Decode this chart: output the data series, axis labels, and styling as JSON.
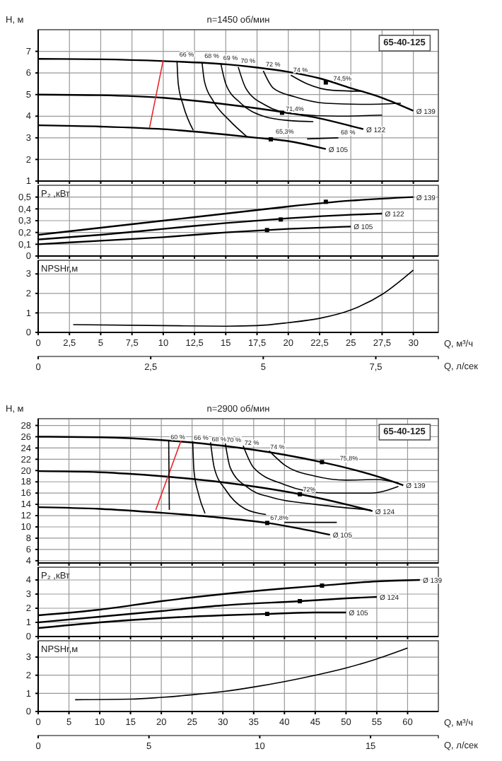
{
  "chart_data": [
    {
      "type": "line",
      "title": "n=1450 об/мин",
      "ylabel": "H, м",
      "xlim": [
        0,
        32
      ],
      "xticks": [
        0,
        2.5,
        5,
        7.5,
        10,
        12.5,
        15,
        17.5,
        20,
        22.5,
        25,
        27.5,
        30
      ],
      "ylim": [
        1,
        8
      ],
      "yticks": [
        1,
        2,
        3,
        4,
        5,
        6,
        7
      ],
      "grid": true,
      "tick_labels": "y",
      "series": [
        {
          "name": "Ø 139",
          "color": "#000000",
          "x": [
            0,
            5,
            10,
            15,
            17.5,
            20,
            22.5,
            25,
            27.5,
            30
          ],
          "values": [
            6.65,
            6.63,
            6.55,
            6.4,
            6.25,
            6.05,
            5.75,
            5.3,
            4.85,
            4.25
          ]
        },
        {
          "name": "Ø 122",
          "color": "#000000",
          "x": [
            0,
            5,
            10,
            15,
            20,
            22.5,
            25,
            26
          ],
          "values": [
            5.0,
            4.97,
            4.85,
            4.55,
            4.15,
            3.9,
            3.55,
            3.4
          ]
        },
        {
          "name": "Ø 105",
          "color": "#000000",
          "x": [
            0,
            5,
            10,
            15,
            17.5,
            20,
            22.5,
            23
          ],
          "values": [
            3.58,
            3.52,
            3.4,
            3.15,
            3.0,
            2.85,
            2.55,
            2.48
          ]
        },
        {
          "color": "#e8262b",
          "x": [
            10,
            8.9
          ],
          "values": [
            6.6,
            3.45
          ]
        },
        {
          "color": "#000000",
          "x": [
            11.1,
            11.2,
            11.6,
            12.4
          ],
          "values": [
            6.57,
            5.5,
            4.5,
            3.35
          ]
        },
        {
          "color": "#000000",
          "x": [
            13.1,
            13.3,
            14,
            15.3,
            16.7
          ],
          "values": [
            6.5,
            5.6,
            4.7,
            3.8,
            3.05
          ]
        },
        {
          "color": "#000000",
          "x": [
            14.6,
            15,
            16.2,
            18,
            20,
            22
          ],
          "values": [
            6.45,
            5.5,
            4.6,
            4.0,
            3.8,
            3.75
          ]
        },
        {
          "color": "#000000",
          "x": [
            16,
            16.6,
            18.2,
            20.5,
            24,
            27.5
          ],
          "values": [
            6.27,
            5.3,
            4.5,
            4.1,
            4.0,
            4.05
          ]
        },
        {
          "color": "#000000",
          "x": [
            18,
            18.8,
            20.5,
            23,
            26,
            29
          ],
          "values": [
            6.1,
            5.3,
            4.9,
            4.6,
            4.55,
            4.6
          ]
        },
        {
          "color": "#000000",
          "x": [
            20.2,
            21.5,
            23.5,
            26
          ],
          "values": [
            5.9,
            5.5,
            5.2,
            5.15
          ]
        },
        {
          "color": "#000000",
          "x": [
            21.5,
            24
          ],
          "values": [
            2.95,
            3.0
          ]
        },
        {
          "type": "scatter",
          "marker": "square",
          "color": "#000000",
          "x": [
            23,
            19.5,
            18.6
          ],
          "values": [
            5.56,
            4.16,
            2.93
          ]
        }
      ],
      "annotations": [
        "65-40-125",
        {
          "text": "66 %",
          "x": 11.3,
          "y": 6.75
        },
        {
          "text": "68 %",
          "x": 13.3,
          "y": 6.7
        },
        {
          "text": "69 %",
          "x": 14.8,
          "y": 6.6
        },
        {
          "text": "70 %",
          "x": 16.2,
          "y": 6.45
        },
        {
          "text": "72 %",
          "x": 18.2,
          "y": 6.3
        },
        {
          "text": "74 %",
          "x": 20.4,
          "y": 6.05
        },
        {
          "text": "74,5%",
          "x": 23.6,
          "y": 5.65
        },
        {
          "text": "71,4%",
          "x": 19.8,
          "y": 4.25
        },
        {
          "text": "65,3%",
          "x": 19.0,
          "y": 3.2
        },
        {
          "text": "68 %",
          "x": 24.2,
          "y": 3.15
        }
      ]
    },
    {
      "type": "line",
      "ylabel": "P₂ ,кВт",
      "xlim": [
        0,
        32
      ],
      "xticks": [
        0,
        2.5,
        5,
        7.5,
        10,
        12.5,
        15,
        17.5,
        20,
        22.5,
        25,
        27.5,
        30
      ],
      "ylim": [
        0,
        0.6
      ],
      "yticks": [
        0,
        {
          "value": 0.1,
          "label": "0,1"
        },
        {
          "value": 0.2,
          "label": "0,2"
        },
        {
          "value": 0.3,
          "label": "0,3"
        },
        {
          "value": 0.4,
          "label": "0,4"
        },
        {
          "value": 0.5,
          "label": "0,5"
        }
      ],
      "grid": true,
      "tick_labels": "y",
      "series": [
        {
          "name": "Ø 139",
          "color": "#000000",
          "x": [
            0,
            5,
            10,
            15,
            20,
            25,
            30
          ],
          "values": [
            0.18,
            0.24,
            0.3,
            0.36,
            0.42,
            0.47,
            0.5
          ]
        },
        {
          "name": "Ø 122",
          "color": "#000000",
          "x": [
            0,
            5,
            10,
            15,
            20,
            25,
            27.5
          ],
          "values": [
            0.14,
            0.18,
            0.23,
            0.28,
            0.32,
            0.35,
            0.36
          ]
        },
        {
          "name": "Ø 105",
          "color": "#000000",
          "x": [
            0,
            5,
            10,
            15,
            20,
            25
          ],
          "values": [
            0.1,
            0.13,
            0.16,
            0.2,
            0.23,
            0.25
          ]
        },
        {
          "type": "scatter",
          "marker": "square",
          "color": "#000000",
          "x": [
            23,
            19.4,
            18.3
          ],
          "values": [
            0.46,
            0.31,
            0.22
          ]
        }
      ]
    },
    {
      "type": "line",
      "ylabel": "NPSHr,м",
      "xlabel": "Q, м³/ч",
      "x2label": "Q, л/сек",
      "xlim": [
        0,
        32
      ],
      "xticks": [
        0,
        {
          "value": 2.5,
          "label": "2,5"
        },
        5,
        {
          "value": 7.5,
          "label": "7,5"
        },
        10,
        {
          "value": 12.5,
          "label": "12,5"
        },
        15,
        {
          "value": 17.5,
          "label": "17,5"
        },
        20,
        {
          "value": 22.5,
          "label": "22,5"
        },
        25,
        {
          "value": 27.5,
          "label": "27,5"
        },
        30
      ],
      "x2lim": [
        0,
        8.89
      ],
      "x2ticks": [
        0,
        {
          "value": 2.5,
          "label": "2,5"
        },
        5,
        {
          "value": 7.5,
          "label": "7,5"
        }
      ],
      "ylim": [
        0,
        3.7
      ],
      "yticks": [
        0,
        1,
        2,
        3
      ],
      "grid": true,
      "series": [
        {
          "color": "#000000",
          "x": [
            2.8,
            10,
            15,
            17.5,
            20,
            22.5,
            25,
            27.5,
            30
          ],
          "values": [
            0.4,
            0.35,
            0.32,
            0.35,
            0.5,
            0.72,
            1.15,
            1.95,
            3.2
          ]
        }
      ]
    },
    {
      "type": "line",
      "title": "n=2900 об/мин",
      "ylabel": "H, м",
      "xlim": [
        0,
        65
      ],
      "xticks": [
        0,
        5,
        10,
        15,
        20,
        25,
        30,
        35,
        40,
        45,
        50,
        55,
        60
      ],
      "ylim": [
        3.6,
        29.2
      ],
      "yticks": [
        4,
        6,
        8,
        10,
        12,
        14,
        16,
        18,
        20,
        22,
        24,
        26,
        28
      ],
      "grid": true,
      "tick_labels": "y",
      "series": [
        {
          "name": "Ø 139",
          "color": "#000000",
          "x": [
            0,
            10,
            20,
            30,
            40,
            46,
            50,
            55,
            59.3
          ],
          "values": [
            26.0,
            25.9,
            25.4,
            24.4,
            22.8,
            21.5,
            20.5,
            19,
            17.4
          ]
        },
        {
          "name": "Ø 124",
          "color": "#000000",
          "x": [
            0,
            10,
            20,
            30,
            42.5,
            50,
            54.3
          ],
          "values": [
            19.9,
            19.7,
            19.0,
            17.9,
            15.8,
            14.0,
            12.8
          ]
        },
        {
          "name": "Ø 105",
          "color": "#000000",
          "x": [
            0,
            10,
            20,
            30,
            37.2,
            42,
            47.4
          ],
          "values": [
            13.5,
            13.2,
            12.5,
            11.6,
            10.7,
            9.8,
            8.6
          ]
        },
        {
          "color": "#e8262b",
          "x": [
            23.2,
            19.1
          ],
          "values": [
            25.3,
            13.0
          ]
        },
        {
          "color": "#000000",
          "x": [
            21.2,
            21.3
          ],
          "values": [
            25.3,
            13.0
          ]
        },
        {
          "color": "#000000",
          "x": [
            25.1,
            25.3,
            26,
            27.1
          ],
          "values": [
            25.2,
            20,
            16,
            12.4
          ]
        },
        {
          "color": "#000000",
          "x": [
            28,
            28.6,
            30.5,
            33.6,
            37
          ],
          "values": [
            25.0,
            20.5,
            16.5,
            13.2,
            12.2
          ]
        },
        {
          "color": "#000000",
          "x": [
            30.4,
            31.2,
            34,
            38,
            45,
            54
          ],
          "values": [
            24.8,
            20.5,
            17,
            15.2,
            14,
            13
          ]
        },
        {
          "color": "#000000",
          "x": [
            33.3,
            35,
            40,
            47,
            54,
            58.5
          ],
          "values": [
            24.4,
            20.5,
            17.5,
            16,
            16,
            17.2
          ]
        },
        {
          "color": "#000000",
          "x": [
            37.5,
            40,
            45,
            50,
            55,
            58.5
          ],
          "values": [
            23.5,
            21,
            19,
            18.3,
            18.4,
            17.8
          ]
        },
        {
          "color": "#000000",
          "x": [
            40,
            48.5
          ],
          "values": [
            10.8,
            10.8
          ]
        },
        {
          "type": "scatter",
          "marker": "square",
          "color": "#000000",
          "x": [
            46.1,
            42.5,
            37.2
          ],
          "values": [
            21.5,
            15.8,
            10.7
          ]
        }
      ],
      "annotations": [
        "65-40-125",
        {
          "text": "60 %",
          "x": 21.5,
          "y": 25.6
        },
        {
          "text": "66 %",
          "x": 25.3,
          "y": 25.4
        },
        {
          "text": "68 %",
          "x": 28.2,
          "y": 25.2
        },
        {
          "text": "70 %",
          "x": 30.6,
          "y": 25.0
        },
        {
          "text": "72 %",
          "x": 33.5,
          "y": 24.6
        },
        {
          "text": "74 %",
          "x": 37.7,
          "y": 23.8
        },
        {
          "text": "75,8%",
          "x": 49,
          "y": 21.8
        },
        {
          "text": "72%",
          "x": 43,
          "y": 16.3
        },
        {
          "text": "67,8%",
          "x": 37.7,
          "y": 11.2
        }
      ]
    },
    {
      "type": "line",
      "ylabel": "P₂ ,кВт",
      "xlim": [
        0,
        65
      ],
      "xticks": [
        0,
        5,
        10,
        15,
        20,
        25,
        30,
        35,
        40,
        45,
        50,
        55,
        60
      ],
      "ylim": [
        0,
        4.9
      ],
      "yticks": [
        0,
        1,
        2,
        3,
        4
      ],
      "grid": true,
      "tick_labels": "y",
      "series": [
        {
          "name": "Ø 139",
          "color": "#000000",
          "x": [
            0,
            10,
            20,
            30,
            40,
            46,
            55,
            62
          ],
          "values": [
            1.5,
            1.9,
            2.5,
            3.0,
            3.4,
            3.6,
            3.9,
            4.0
          ]
        },
        {
          "name": "Ø 124",
          "color": "#000000",
          "x": [
            0,
            10,
            20,
            30,
            42.5,
            50,
            55
          ],
          "values": [
            1.0,
            1.4,
            1.8,
            2.2,
            2.5,
            2.7,
            2.8
          ]
        },
        {
          "name": "Ø 105",
          "color": "#000000",
          "x": [
            0,
            10,
            20,
            30,
            37.2,
            45,
            50
          ],
          "values": [
            0.6,
            1.0,
            1.3,
            1.5,
            1.6,
            1.7,
            1.7
          ]
        },
        {
          "type": "scatter",
          "marker": "square",
          "color": "#000000",
          "x": [
            46.1,
            42.5,
            37.2
          ],
          "values": [
            3.6,
            2.5,
            1.6
          ]
        }
      ]
    },
    {
      "type": "line",
      "ylabel": "NPSHr,м",
      "xlabel": "Q, м³/ч",
      "x2label": "Q, л/сек",
      "xlim": [
        0,
        65
      ],
      "xticks": [
        0,
        5,
        10,
        15,
        20,
        25,
        30,
        35,
        40,
        45,
        50,
        55,
        60
      ],
      "x2lim": [
        0,
        18.06
      ],
      "x2ticks": [
        0,
        5,
        10,
        15
      ],
      "ylim": [
        0,
        3.9
      ],
      "yticks": [
        0,
        1,
        2,
        3
      ],
      "grid": true,
      "series": [
        {
          "color": "#000000",
          "x": [
            6,
            15,
            20,
            25,
            30,
            35,
            40,
            45,
            50,
            55,
            60
          ],
          "values": [
            0.65,
            0.68,
            0.78,
            0.92,
            1.1,
            1.35,
            1.65,
            2.0,
            2.4,
            2.9,
            3.5
          ]
        }
      ]
    }
  ]
}
